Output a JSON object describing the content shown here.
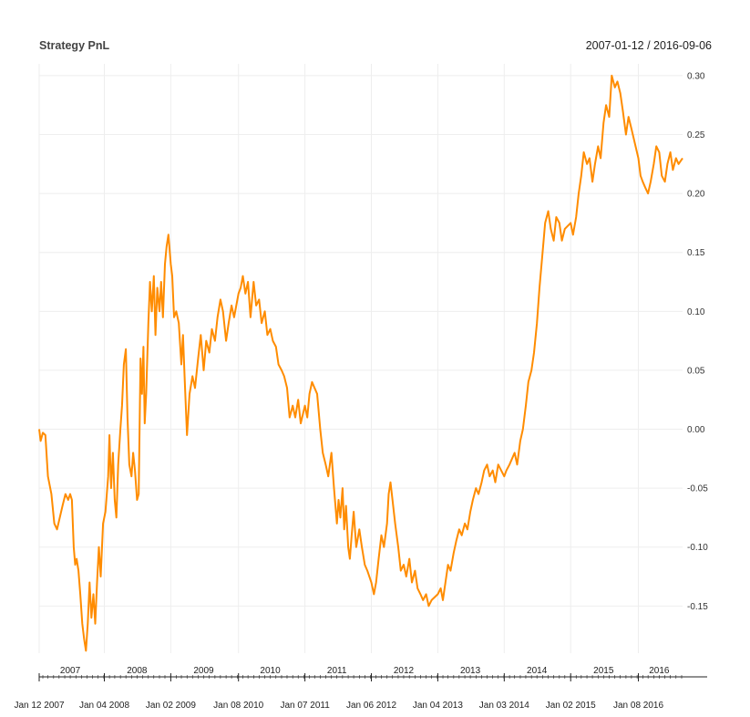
{
  "chart_data": {
    "type": "line",
    "title": "Strategy PnL",
    "date_range": "2007-01-12 / 2016-09-06",
    "y_axis_position": "right",
    "ylim": [
      -0.19,
      0.31
    ],
    "y_ticks": [
      0.3,
      0.25,
      0.2,
      0.15,
      0.1,
      0.05,
      0.0,
      -0.05,
      -0.1,
      -0.15
    ],
    "y_tick_labels": [
      "0.30",
      "0.25",
      "0.20",
      "0.15",
      "0.10",
      "0.05",
      "0.00",
      "-0.05",
      "-0.10",
      "-0.15"
    ],
    "x_range": [
      "2007-01-12",
      "2016-09-06"
    ],
    "x_year_labels": [
      {
        "label": "2007",
        "date": "2007-07-01"
      },
      {
        "label": "2008",
        "date": "2008-07-01"
      },
      {
        "label": "2009",
        "date": "2009-07-01"
      },
      {
        "label": "2010",
        "date": "2010-07-01"
      },
      {
        "label": "2011",
        "date": "2011-07-01"
      },
      {
        "label": "2012",
        "date": "2012-07-01"
      },
      {
        "label": "2013",
        "date": "2013-07-01"
      },
      {
        "label": "2014",
        "date": "2014-07-01"
      },
      {
        "label": "2015",
        "date": "2015-07-01"
      },
      {
        "label": "2016",
        "date": "2016-05-01"
      }
    ],
    "x_tick_dates": [
      {
        "label": "Jan 12 2007",
        "date": "2007-01-12"
      },
      {
        "label": "Jan 04 2008",
        "date": "2008-01-04"
      },
      {
        "label": "Jan 02 2009",
        "date": "2009-01-02"
      },
      {
        "label": "Jan 08 2010",
        "date": "2010-01-08"
      },
      {
        "label": "Jan 07 2011",
        "date": "2011-01-07"
      },
      {
        "label": "Jan 06 2012",
        "date": "2012-01-06"
      },
      {
        "label": "Jan 04 2013",
        "date": "2013-01-04"
      },
      {
        "label": "Jan 03 2014",
        "date": "2014-01-03"
      },
      {
        "label": "Jan 02 2015",
        "date": "2015-01-02"
      },
      {
        "label": "Jan 08 2016",
        "date": "2016-01-08"
      }
    ],
    "grid": true,
    "series": [
      {
        "color": "#ff8c00",
        "points": [
          [
            "2007-01-12",
            0.0
          ],
          [
            "2007-01-20",
            -0.01
          ],
          [
            "2007-02-01",
            -0.003
          ],
          [
            "2007-02-15",
            -0.005
          ],
          [
            "2007-03-01",
            -0.04
          ],
          [
            "2007-03-20",
            -0.055
          ],
          [
            "2007-04-05",
            -0.08
          ],
          [
            "2007-04-20",
            -0.085
          ],
          [
            "2007-05-05",
            -0.075
          ],
          [
            "2007-05-20",
            -0.065
          ],
          [
            "2007-06-05",
            -0.055
          ],
          [
            "2007-06-20",
            -0.06
          ],
          [
            "2007-07-01",
            -0.055
          ],
          [
            "2007-07-10",
            -0.06
          ],
          [
            "2007-07-20",
            -0.1
          ],
          [
            "2007-07-28",
            -0.115
          ],
          [
            "2007-08-05",
            -0.11
          ],
          [
            "2007-08-15",
            -0.12
          ],
          [
            "2007-08-25",
            -0.14
          ],
          [
            "2007-09-05",
            -0.165
          ],
          [
            "2007-09-15",
            -0.178
          ],
          [
            "2007-09-25",
            -0.188
          ],
          [
            "2007-10-05",
            -0.165
          ],
          [
            "2007-10-15",
            -0.13
          ],
          [
            "2007-10-25",
            -0.16
          ],
          [
            "2007-11-05",
            -0.14
          ],
          [
            "2007-11-15",
            -0.165
          ],
          [
            "2007-11-25",
            -0.13
          ],
          [
            "2007-12-05",
            -0.1
          ],
          [
            "2007-12-15",
            -0.125
          ],
          [
            "2007-12-28",
            -0.08
          ],
          [
            "2008-01-10",
            -0.07
          ],
          [
            "2008-01-25",
            -0.04
          ],
          [
            "2008-02-01",
            -0.005
          ],
          [
            "2008-02-10",
            -0.05
          ],
          [
            "2008-02-20",
            -0.02
          ],
          [
            "2008-03-01",
            -0.06
          ],
          [
            "2008-03-10",
            -0.075
          ],
          [
            "2008-03-20",
            -0.03
          ],
          [
            "2008-04-01",
            0.0
          ],
          [
            "2008-04-10",
            0.02
          ],
          [
            "2008-04-20",
            0.055
          ],
          [
            "2008-05-01",
            0.068
          ],
          [
            "2008-05-10",
            0.01
          ],
          [
            "2008-05-20",
            -0.03
          ],
          [
            "2008-06-01",
            -0.04
          ],
          [
            "2008-06-10",
            -0.02
          ],
          [
            "2008-06-20",
            -0.035
          ],
          [
            "2008-07-01",
            -0.06
          ],
          [
            "2008-07-10",
            -0.055
          ],
          [
            "2008-07-20",
            0.06
          ],
          [
            "2008-07-28",
            0.03
          ],
          [
            "2008-08-05",
            0.07
          ],
          [
            "2008-08-12",
            0.005
          ],
          [
            "2008-08-20",
            0.03
          ],
          [
            "2008-09-01",
            0.09
          ],
          [
            "2008-09-10",
            0.125
          ],
          [
            "2008-09-20",
            0.1
          ],
          [
            "2008-10-01",
            0.13
          ],
          [
            "2008-10-10",
            0.08
          ],
          [
            "2008-10-20",
            0.12
          ],
          [
            "2008-11-01",
            0.1
          ],
          [
            "2008-11-10",
            0.125
          ],
          [
            "2008-11-20",
            0.095
          ],
          [
            "2008-12-01",
            0.14
          ],
          [
            "2008-12-10",
            0.155
          ],
          [
            "2008-12-20",
            0.165
          ],
          [
            "2009-01-02",
            0.14
          ],
          [
            "2009-01-10",
            0.13
          ],
          [
            "2009-01-20",
            0.095
          ],
          [
            "2009-02-01",
            0.1
          ],
          [
            "2009-02-15",
            0.09
          ],
          [
            "2009-03-01",
            0.055
          ],
          [
            "2009-03-10",
            0.08
          ],
          [
            "2009-03-20",
            0.04
          ],
          [
            "2009-04-01",
            -0.005
          ],
          [
            "2009-04-15",
            0.03
          ],
          [
            "2009-05-01",
            0.045
          ],
          [
            "2009-05-15",
            0.035
          ],
          [
            "2009-06-01",
            0.06
          ],
          [
            "2009-06-15",
            0.08
          ],
          [
            "2009-07-01",
            0.05
          ],
          [
            "2009-07-15",
            0.075
          ],
          [
            "2009-08-01",
            0.065
          ],
          [
            "2009-08-15",
            0.085
          ],
          [
            "2009-09-01",
            0.075
          ],
          [
            "2009-09-15",
            0.095
          ],
          [
            "2009-10-01",
            0.11
          ],
          [
            "2009-10-15",
            0.1
          ],
          [
            "2009-11-01",
            0.075
          ],
          [
            "2009-11-15",
            0.09
          ],
          [
            "2009-12-01",
            0.105
          ],
          [
            "2009-12-15",
            0.095
          ],
          [
            "2010-01-08",
            0.115
          ],
          [
            "2010-01-20",
            0.12
          ],
          [
            "2010-02-01",
            0.13
          ],
          [
            "2010-02-15",
            0.115
          ],
          [
            "2010-03-01",
            0.125
          ],
          [
            "2010-03-15",
            0.095
          ],
          [
            "2010-04-01",
            0.125
          ],
          [
            "2010-04-15",
            0.105
          ],
          [
            "2010-05-01",
            0.11
          ],
          [
            "2010-05-15",
            0.09
          ],
          [
            "2010-06-01",
            0.1
          ],
          [
            "2010-06-15",
            0.08
          ],
          [
            "2010-07-01",
            0.085
          ],
          [
            "2010-07-15",
            0.075
          ],
          [
            "2010-08-01",
            0.07
          ],
          [
            "2010-08-15",
            0.055
          ],
          [
            "2010-09-01",
            0.05
          ],
          [
            "2010-09-15",
            0.045
          ],
          [
            "2010-10-01",
            0.035
          ],
          [
            "2010-10-15",
            0.01
          ],
          [
            "2010-11-01",
            0.02
          ],
          [
            "2010-11-15",
            0.01
          ],
          [
            "2010-12-01",
            0.025
          ],
          [
            "2010-12-15",
            0.005
          ],
          [
            "2011-01-07",
            0.02
          ],
          [
            "2011-01-20",
            0.01
          ],
          [
            "2011-02-01",
            0.03
          ],
          [
            "2011-02-15",
            0.04
          ],
          [
            "2011-03-01",
            0.035
          ],
          [
            "2011-03-15",
            0.03
          ],
          [
            "2011-04-01",
            0.0
          ],
          [
            "2011-04-15",
            -0.02
          ],
          [
            "2011-05-01",
            -0.03
          ],
          [
            "2011-05-15",
            -0.04
          ],
          [
            "2011-06-01",
            -0.02
          ],
          [
            "2011-06-15",
            -0.05
          ],
          [
            "2011-07-01",
            -0.08
          ],
          [
            "2011-07-10",
            -0.06
          ],
          [
            "2011-07-20",
            -0.075
          ],
          [
            "2011-08-01",
            -0.05
          ],
          [
            "2011-08-10",
            -0.085
          ],
          [
            "2011-08-20",
            -0.065
          ],
          [
            "2011-09-01",
            -0.1
          ],
          [
            "2011-09-10",
            -0.11
          ],
          [
            "2011-09-20",
            -0.09
          ],
          [
            "2011-10-01",
            -0.07
          ],
          [
            "2011-10-15",
            -0.1
          ],
          [
            "2011-11-01",
            -0.085
          ],
          [
            "2011-11-15",
            -0.1
          ],
          [
            "2011-12-01",
            -0.115
          ],
          [
            "2011-12-15",
            -0.12
          ],
          [
            "2012-01-06",
            -0.13
          ],
          [
            "2012-01-20",
            -0.14
          ],
          [
            "2012-02-01",
            -0.13
          ],
          [
            "2012-02-15",
            -0.11
          ],
          [
            "2012-03-01",
            -0.09
          ],
          [
            "2012-03-15",
            -0.1
          ],
          [
            "2012-04-01",
            -0.08
          ],
          [
            "2012-04-10",
            -0.055
          ],
          [
            "2012-04-20",
            -0.045
          ],
          [
            "2012-05-01",
            -0.06
          ],
          [
            "2012-05-15",
            -0.08
          ],
          [
            "2012-06-01",
            -0.1
          ],
          [
            "2012-06-15",
            -0.12
          ],
          [
            "2012-07-01",
            -0.115
          ],
          [
            "2012-07-15",
            -0.125
          ],
          [
            "2012-08-01",
            -0.11
          ],
          [
            "2012-08-15",
            -0.13
          ],
          [
            "2012-09-01",
            -0.12
          ],
          [
            "2012-09-15",
            -0.135
          ],
          [
            "2012-10-01",
            -0.14
          ],
          [
            "2012-10-15",
            -0.145
          ],
          [
            "2012-11-01",
            -0.14
          ],
          [
            "2012-11-15",
            -0.15
          ],
          [
            "2012-12-01",
            -0.145
          ],
          [
            "2013-01-04",
            -0.14
          ],
          [
            "2013-01-20",
            -0.135
          ],
          [
            "2013-02-01",
            -0.145
          ],
          [
            "2013-02-15",
            -0.13
          ],
          [
            "2013-03-01",
            -0.115
          ],
          [
            "2013-03-15",
            -0.12
          ],
          [
            "2013-04-01",
            -0.105
          ],
          [
            "2013-04-15",
            -0.095
          ],
          [
            "2013-05-01",
            -0.085
          ],
          [
            "2013-05-15",
            -0.09
          ],
          [
            "2013-06-01",
            -0.08
          ],
          [
            "2013-06-15",
            -0.085
          ],
          [
            "2013-07-01",
            -0.07
          ],
          [
            "2013-07-15",
            -0.06
          ],
          [
            "2013-08-01",
            -0.05
          ],
          [
            "2013-08-15",
            -0.055
          ],
          [
            "2013-09-01",
            -0.045
          ],
          [
            "2013-09-15",
            -0.035
          ],
          [
            "2013-10-01",
            -0.03
          ],
          [
            "2013-10-15",
            -0.04
          ],
          [
            "2013-11-01",
            -0.035
          ],
          [
            "2013-11-15",
            -0.045
          ],
          [
            "2013-12-01",
            -0.03
          ],
          [
            "2014-01-03",
            -0.04
          ],
          [
            "2014-01-15",
            -0.035
          ],
          [
            "2014-02-01",
            -0.03
          ],
          [
            "2014-02-15",
            -0.025
          ],
          [
            "2014-03-01",
            -0.02
          ],
          [
            "2014-03-15",
            -0.03
          ],
          [
            "2014-04-01",
            -0.01
          ],
          [
            "2014-04-15",
            0.0
          ],
          [
            "2014-05-01",
            0.02
          ],
          [
            "2014-05-15",
            0.04
          ],
          [
            "2014-06-01",
            0.05
          ],
          [
            "2014-06-15",
            0.065
          ],
          [
            "2014-07-01",
            0.09
          ],
          [
            "2014-07-15",
            0.12
          ],
          [
            "2014-08-01",
            0.15
          ],
          [
            "2014-08-15",
            0.175
          ],
          [
            "2014-09-01",
            0.185
          ],
          [
            "2014-09-15",
            0.17
          ],
          [
            "2014-10-01",
            0.16
          ],
          [
            "2014-10-15",
            0.18
          ],
          [
            "2014-11-01",
            0.175
          ],
          [
            "2014-11-15",
            0.16
          ],
          [
            "2014-12-01",
            0.17
          ],
          [
            "2015-01-02",
            0.175
          ],
          [
            "2015-01-15",
            0.165
          ],
          [
            "2015-02-01",
            0.18
          ],
          [
            "2015-02-15",
            0.2
          ],
          [
            "2015-03-01",
            0.215
          ],
          [
            "2015-03-15",
            0.235
          ],
          [
            "2015-04-01",
            0.225
          ],
          [
            "2015-04-15",
            0.23
          ],
          [
            "2015-05-01",
            0.21
          ],
          [
            "2015-05-15",
            0.225
          ],
          [
            "2015-06-01",
            0.24
          ],
          [
            "2015-06-15",
            0.23
          ],
          [
            "2015-07-01",
            0.26
          ],
          [
            "2015-07-15",
            0.275
          ],
          [
            "2015-08-01",
            0.265
          ],
          [
            "2015-08-15",
            0.3
          ],
          [
            "2015-09-01",
            0.29
          ],
          [
            "2015-09-15",
            0.295
          ],
          [
            "2015-10-01",
            0.285
          ],
          [
            "2015-10-15",
            0.27
          ],
          [
            "2015-11-01",
            0.25
          ],
          [
            "2015-11-15",
            0.265
          ],
          [
            "2015-12-01",
            0.255
          ],
          [
            "2016-01-08",
            0.23
          ],
          [
            "2016-01-20",
            0.215
          ],
          [
            "2016-02-01",
            0.21
          ],
          [
            "2016-02-15",
            0.205
          ],
          [
            "2016-03-01",
            0.2
          ],
          [
            "2016-03-15",
            0.21
          ],
          [
            "2016-04-01",
            0.225
          ],
          [
            "2016-04-15",
            0.24
          ],
          [
            "2016-05-01",
            0.235
          ],
          [
            "2016-05-15",
            0.215
          ],
          [
            "2016-06-01",
            0.21
          ],
          [
            "2016-06-15",
            0.225
          ],
          [
            "2016-07-01",
            0.235
          ],
          [
            "2016-07-15",
            0.22
          ],
          [
            "2016-08-01",
            0.23
          ],
          [
            "2016-08-15",
            0.225
          ],
          [
            "2016-09-06",
            0.23
          ]
        ]
      }
    ]
  }
}
